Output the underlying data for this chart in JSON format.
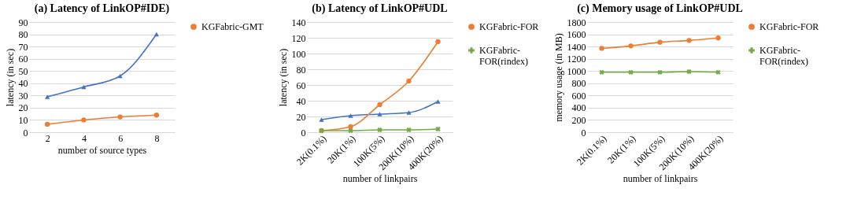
{
  "chart_data": [
    {
      "type": "line",
      "title": "(a) Latency of LinkOP#IDE)",
      "xlabel": "number of source types",
      "ylabel": "latency (in sec)",
      "categories": [
        "2",
        "4",
        "6",
        "8"
      ],
      "ylim": [
        0,
        90
      ],
      "yticks": [
        0,
        10,
        20,
        30,
        40,
        50,
        60,
        70,
        80,
        90
      ],
      "grid": "y",
      "legend": "right",
      "series": [
        {
          "color": "#4472c4",
          "marker": "triangle",
          "values": [
            29,
            37,
            46,
            80
          ]
        },
        {
          "name": "KGFabric-GMT",
          "color": "#ed7d31",
          "marker": "circle",
          "values": [
            6.5,
            10,
            12.5,
            14
          ]
        }
      ]
    },
    {
      "type": "line",
      "title": "(b) Latency of LinkOP#UDL",
      "xlabel": "number of linkpairs",
      "ylabel": "latency (in sec)",
      "categories": [
        "2K(0.1%)",
        "20K(1%)",
        "100K(5%)",
        "200K(10%)",
        "400K(20%)"
      ],
      "ylim": [
        0,
        140
      ],
      "yticks": [
        0,
        20,
        40,
        60,
        80,
        100,
        120,
        140
      ],
      "grid": "y",
      "legend": "right",
      "series": [
        {
          "color": "#4472c4",
          "marker": "triangle",
          "values": [
            16,
            21,
            23,
            25,
            39
          ]
        },
        {
          "name": "KGFabric-FOR",
          "color": "#ed7d31",
          "marker": "circle",
          "values": [
            2,
            7,
            35,
            65,
            115
          ]
        },
        {
          "name": "KGFabric-FOR(rindex)",
          "color": "#70ad47",
          "marker": "cross",
          "values": [
            2,
            2,
            3,
            3,
            4
          ]
        }
      ]
    },
    {
      "type": "line",
      "title": "(c) Memory usage of LinkOP#UDL",
      "xlabel": "number of linkpairs",
      "ylabel": "memory usage (in MB)",
      "categories": [
        "2K(0.1%)",
        "20K(1%)",
        "100K(5%)",
        "200K(10%)",
        "400K(20%)"
      ],
      "ylim": [
        0,
        1800
      ],
      "yticks": [
        0,
        200,
        400,
        600,
        800,
        1000,
        1200,
        1400,
        1600,
        1800
      ],
      "grid": "y",
      "legend": "right",
      "series": [
        {
          "name": "KGFabric-FOR",
          "color": "#ed7d31",
          "marker": "circle",
          "values": [
            1370,
            1410,
            1470,
            1500,
            1540
          ]
        },
        {
          "name": "KGFabric-FOR(rindex)",
          "color": "#70ad47",
          "marker": "cross",
          "values": [
            980,
            980,
            980,
            990,
            980
          ]
        }
      ]
    }
  ]
}
